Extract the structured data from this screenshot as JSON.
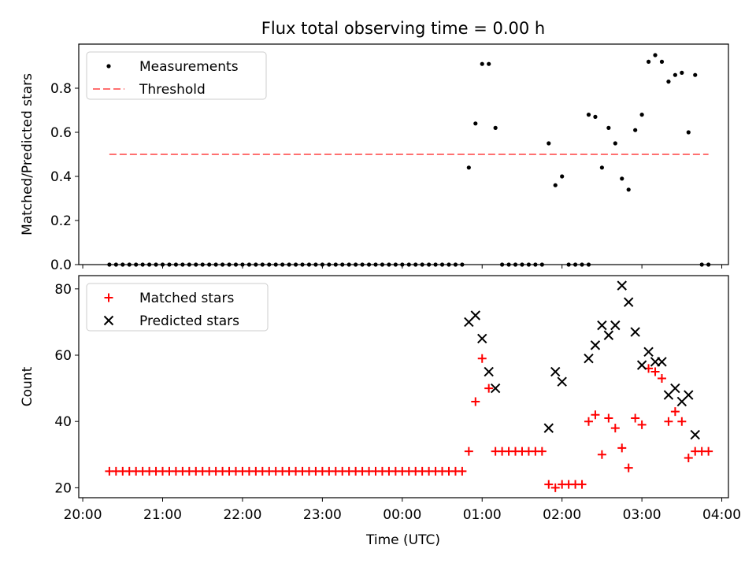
{
  "figure": {
    "title": "Flux total observing time = 0.00 h"
  },
  "chart_data": [
    {
      "type": "scatter",
      "ylabel": "Matched/Predicted stars",
      "xlim": [
        "20:00",
        "04:00"
      ],
      "ylim": [
        0,
        1.0
      ],
      "yticks": [
        "0.0",
        "0.2",
        "0.4",
        "0.6",
        "0.8"
      ],
      "legend_position": "upper-left",
      "series": [
        {
          "name": "Measurements",
          "marker": "dot",
          "color": "#000000",
          "points": [
            [
              "20:20",
              0
            ],
            [
              "20:25",
              0
            ],
            [
              "20:30",
              0
            ],
            [
              "20:35",
              0
            ],
            [
              "20:40",
              0
            ],
            [
              "20:45",
              0
            ],
            [
              "20:50",
              0
            ],
            [
              "20:55",
              0
            ],
            [
              "21:00",
              0
            ],
            [
              "21:05",
              0
            ],
            [
              "21:10",
              0
            ],
            [
              "21:15",
              0
            ],
            [
              "21:20",
              0
            ],
            [
              "21:25",
              0
            ],
            [
              "21:30",
              0
            ],
            [
              "21:35",
              0
            ],
            [
              "21:40",
              0
            ],
            [
              "21:45",
              0
            ],
            [
              "21:50",
              0
            ],
            [
              "21:55",
              0
            ],
            [
              "22:00",
              0
            ],
            [
              "22:05",
              0
            ],
            [
              "22:10",
              0
            ],
            [
              "22:15",
              0
            ],
            [
              "22:20",
              0
            ],
            [
              "22:25",
              0
            ],
            [
              "22:30",
              0
            ],
            [
              "22:35",
              0
            ],
            [
              "22:40",
              0
            ],
            [
              "22:45",
              0
            ],
            [
              "22:50",
              0
            ],
            [
              "22:55",
              0
            ],
            [
              "23:00",
              0
            ],
            [
              "23:05",
              0
            ],
            [
              "23:10",
              0
            ],
            [
              "23:15",
              0
            ],
            [
              "23:20",
              0
            ],
            [
              "23:25",
              0
            ],
            [
              "23:30",
              0
            ],
            [
              "23:35",
              0
            ],
            [
              "23:40",
              0
            ],
            [
              "23:45",
              0
            ],
            [
              "23:50",
              0
            ],
            [
              "23:55",
              0
            ],
            [
              "00:00",
              0
            ],
            [
              "00:05",
              0
            ],
            [
              "00:10",
              0
            ],
            [
              "00:15",
              0
            ],
            [
              "00:20",
              0
            ],
            [
              "00:25",
              0
            ],
            [
              "00:30",
              0
            ],
            [
              "00:35",
              0
            ],
            [
              "00:40",
              0
            ],
            [
              "00:45",
              0
            ],
            [
              "00:50",
              0.44
            ],
            [
              "00:55",
              0.64
            ],
            [
              "01:00",
              0.91
            ],
            [
              "01:05",
              0.91
            ],
            [
              "01:10",
              0.62
            ],
            [
              "01:15",
              0
            ],
            [
              "01:20",
              0
            ],
            [
              "01:25",
              0
            ],
            [
              "01:30",
              0
            ],
            [
              "01:35",
              0
            ],
            [
              "01:40",
              0
            ],
            [
              "01:45",
              0
            ],
            [
              "01:50",
              0.55
            ],
            [
              "01:55",
              0.36
            ],
            [
              "02:00",
              0.4
            ],
            [
              "02:05",
              0
            ],
            [
              "02:10",
              0
            ],
            [
              "02:15",
              0
            ],
            [
              "02:20",
              0
            ],
            [
              "02:20",
              0.68
            ],
            [
              "02:25",
              0.67
            ],
            [
              "02:30",
              0.44
            ],
            [
              "02:35",
              0.62
            ],
            [
              "02:40",
              0.55
            ],
            [
              "02:45",
              0.39
            ],
            [
              "02:50",
              0.34
            ],
            [
              "02:55",
              0.61
            ],
            [
              "03:00",
              0.68
            ],
            [
              "03:05",
              0.92
            ],
            [
              "03:10",
              0.95
            ],
            [
              "03:15",
              0.92
            ],
            [
              "03:20",
              0.83
            ],
            [
              "03:25",
              0.86
            ],
            [
              "03:30",
              0.87
            ],
            [
              "03:35",
              0.6
            ],
            [
              "03:40",
              0.86
            ],
            [
              "03:45",
              0
            ],
            [
              "03:50",
              0
            ]
          ]
        },
        {
          "name": "Threshold",
          "marker": "dashed-line",
          "color": "#ff7070",
          "points": [
            [
              "20:20",
              0.5
            ],
            [
              "03:50",
              0.5
            ]
          ]
        }
      ]
    },
    {
      "type": "scatter",
      "xlabel": "Time (UTC)",
      "ylabel": "Count",
      "xlim": [
        "20:00",
        "04:00"
      ],
      "ylim": [
        17,
        84
      ],
      "xticks": [
        "20:00",
        "21:00",
        "22:00",
        "23:00",
        "00:00",
        "01:00",
        "02:00",
        "03:00",
        "04:00"
      ],
      "yticks": [
        "20",
        "40",
        "60",
        "80"
      ],
      "legend_position": "upper-left",
      "series": [
        {
          "name": "Matched stars",
          "marker": "plus",
          "color": "#ff0000",
          "points": [
            [
              "20:20",
              25
            ],
            [
              "20:25",
              25
            ],
            [
              "20:30",
              25
            ],
            [
              "20:35",
              25
            ],
            [
              "20:40",
              25
            ],
            [
              "20:45",
              25
            ],
            [
              "20:50",
              25
            ],
            [
              "20:55",
              25
            ],
            [
              "21:00",
              25
            ],
            [
              "21:05",
              25
            ],
            [
              "21:10",
              25
            ],
            [
              "21:15",
              25
            ],
            [
              "21:20",
              25
            ],
            [
              "21:25",
              25
            ],
            [
              "21:30",
              25
            ],
            [
              "21:35",
              25
            ],
            [
              "21:40",
              25
            ],
            [
              "21:45",
              25
            ],
            [
              "21:50",
              25
            ],
            [
              "21:55",
              25
            ],
            [
              "22:00",
              25
            ],
            [
              "22:05",
              25
            ],
            [
              "22:10",
              25
            ],
            [
              "22:15",
              25
            ],
            [
              "22:20",
              25
            ],
            [
              "22:25",
              25
            ],
            [
              "22:30",
              25
            ],
            [
              "22:35",
              25
            ],
            [
              "22:40",
              25
            ],
            [
              "22:45",
              25
            ],
            [
              "22:50",
              25
            ],
            [
              "22:55",
              25
            ],
            [
              "23:00",
              25
            ],
            [
              "23:05",
              25
            ],
            [
              "23:10",
              25
            ],
            [
              "23:15",
              25
            ],
            [
              "23:20",
              25
            ],
            [
              "23:25",
              25
            ],
            [
              "23:30",
              25
            ],
            [
              "23:35",
              25
            ],
            [
              "23:40",
              25
            ],
            [
              "23:45",
              25
            ],
            [
              "23:50",
              25
            ],
            [
              "23:55",
              25
            ],
            [
              "00:00",
              25
            ],
            [
              "00:05",
              25
            ],
            [
              "00:10",
              25
            ],
            [
              "00:15",
              25
            ],
            [
              "00:20",
              25
            ],
            [
              "00:25",
              25
            ],
            [
              "00:30",
              25
            ],
            [
              "00:35",
              25
            ],
            [
              "00:40",
              25
            ],
            [
              "00:45",
              25
            ],
            [
              "00:50",
              31
            ],
            [
              "00:55",
              46
            ],
            [
              "01:00",
              59
            ],
            [
              "01:05",
              50
            ],
            [
              "01:10",
              31
            ],
            [
              "01:15",
              31
            ],
            [
              "01:20",
              31
            ],
            [
              "01:25",
              31
            ],
            [
              "01:30",
              31
            ],
            [
              "01:35",
              31
            ],
            [
              "01:40",
              31
            ],
            [
              "01:45",
              31
            ],
            [
              "01:50",
              21
            ],
            [
              "01:55",
              20
            ],
            [
              "02:00",
              21
            ],
            [
              "02:05",
              21
            ],
            [
              "02:10",
              21
            ],
            [
              "02:15",
              21
            ],
            [
              "02:20",
              40
            ],
            [
              "02:25",
              42
            ],
            [
              "02:30",
              30
            ],
            [
              "02:35",
              41
            ],
            [
              "02:40",
              38
            ],
            [
              "02:45",
              32
            ],
            [
              "02:50",
              26
            ],
            [
              "02:55",
              41
            ],
            [
              "03:00",
              39
            ],
            [
              "03:05",
              56
            ],
            [
              "03:10",
              55
            ],
            [
              "03:15",
              53
            ],
            [
              "03:20",
              40
            ],
            [
              "03:25",
              43
            ],
            [
              "03:30",
              40
            ],
            [
              "03:35",
              29
            ],
            [
              "03:40",
              31
            ],
            [
              "03:45",
              31
            ],
            [
              "03:50",
              31
            ]
          ]
        },
        {
          "name": "Predicted stars",
          "marker": "x",
          "color": "#000000",
          "points": [
            [
              "00:50",
              70
            ],
            [
              "00:55",
              72
            ],
            [
              "01:00",
              65
            ],
            [
              "01:05",
              55
            ],
            [
              "01:10",
              50
            ],
            [
              "01:50",
              38
            ],
            [
              "01:55",
              55
            ],
            [
              "02:00",
              52
            ],
            [
              "02:20",
              59
            ],
            [
              "02:25",
              63
            ],
            [
              "02:30",
              69
            ],
            [
              "02:35",
              66
            ],
            [
              "02:40",
              69
            ],
            [
              "02:45",
              81
            ],
            [
              "02:50",
              76
            ],
            [
              "02:55",
              67
            ],
            [
              "03:00",
              57
            ],
            [
              "03:05",
              61
            ],
            [
              "03:10",
              58
            ],
            [
              "03:15",
              58
            ],
            [
              "03:20",
              48
            ],
            [
              "03:25",
              50
            ],
            [
              "03:30",
              46
            ],
            [
              "03:35",
              48
            ],
            [
              "03:40",
              36
            ]
          ]
        }
      ]
    }
  ]
}
